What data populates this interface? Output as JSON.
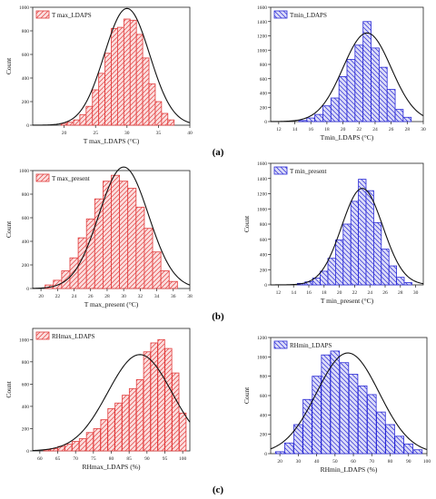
{
  "panel_labels": [
    "(a)",
    "(b)",
    "(c)"
  ],
  "ylabel": "Count",
  "colors": {
    "red": "#e23c3c",
    "red_fill": "#fbdede",
    "blue": "#2a2ad6",
    "blue_fill": "#dcdcf8",
    "curve": "#111111"
  },
  "chart_data": [
    {
      "type": "bar",
      "title": "",
      "legend": "T max_LDAPS",
      "legend_position": "top-left",
      "xlabel": "T max_LDAPS (°C)",
      "ylabel": "Count",
      "color": "red",
      "xlim": [
        15,
        40
      ],
      "ylim": [
        0,
        1000
      ],
      "xticks": [
        20,
        25,
        30,
        35,
        40
      ],
      "yticks": [
        0,
        200,
        400,
        600,
        800,
        1000
      ],
      "bin_width": 1,
      "x": [
        20,
        21,
        22,
        23,
        24,
        25,
        26,
        27,
        28,
        29,
        30,
        31,
        32,
        33,
        34,
        35,
        36,
        37
      ],
      "values": [
        15,
        25,
        45,
        90,
        160,
        300,
        440,
        610,
        820,
        830,
        900,
        890,
        770,
        570,
        350,
        200,
        100,
        45
      ],
      "fit": {
        "mean": 30,
        "sd": 3.6,
        "peak": 990
      }
    },
    {
      "type": "bar",
      "title": "",
      "legend": "Tmin_LDAPS",
      "legend_position": "top-left",
      "xlabel": "Tmin_LDAPS (°C)",
      "ylabel": "",
      "color": "blue",
      "xlim": [
        11,
        30
      ],
      "ylim": [
        0,
        1600
      ],
      "xticks": [
        12,
        14,
        16,
        18,
        20,
        22,
        24,
        26,
        28,
        30
      ],
      "yticks": [
        0,
        200,
        400,
        600,
        800,
        1000,
        1200,
        1400,
        1600
      ],
      "bin_width": 1,
      "x": [
        15,
        16,
        17,
        18,
        19,
        20,
        21,
        22,
        23,
        24,
        25,
        26,
        27,
        28
      ],
      "values": [
        15,
        50,
        100,
        220,
        330,
        630,
        870,
        1070,
        1400,
        1030,
        760,
        450,
        170,
        60
      ],
      "fit": {
        "mean": 23,
        "sd": 3.0,
        "peak": 1240
      }
    },
    {
      "type": "bar",
      "title": "",
      "legend": "T max_present",
      "legend_position": "top-left",
      "xlabel": "T max_present (°C)",
      "ylabel": "Count",
      "color": "red",
      "xlim": [
        19,
        38
      ],
      "ylim": [
        0,
        1000
      ],
      "xticks": [
        20,
        22,
        24,
        26,
        28,
        30,
        32,
        34,
        36,
        38
      ],
      "yticks": [
        0,
        200,
        400,
        600,
        800,
        1000
      ],
      "bin_width": 1,
      "x": [
        21,
        22,
        23,
        24,
        25,
        26,
        27,
        28,
        29,
        30,
        31,
        32,
        33,
        34,
        35,
        36
      ],
      "values": [
        30,
        70,
        150,
        260,
        430,
        590,
        760,
        910,
        960,
        910,
        850,
        690,
        510,
        310,
        150,
        60
      ],
      "fit": {
        "mean": 30,
        "sd": 3.0,
        "peak": 1030
      }
    },
    {
      "type": "bar",
      "title": "",
      "legend": "T min_present",
      "legend_position": "top-left",
      "xlabel": "T min_present (°C)",
      "ylabel": "Count",
      "color": "blue",
      "xlim": [
        11,
        31
      ],
      "ylim": [
        0,
        1600
      ],
      "xticks": [
        12,
        14,
        16,
        18,
        20,
        22,
        24,
        26,
        28,
        30
      ],
      "yticks": [
        0,
        200,
        400,
        600,
        800,
        1000,
        1200,
        1400,
        1600
      ],
      "bin_width": 1,
      "x": [
        15,
        16,
        17,
        18,
        19,
        20,
        21,
        22,
        23,
        24,
        25,
        26,
        27,
        28,
        29
      ],
      "values": [
        20,
        40,
        90,
        180,
        350,
        590,
        800,
        1100,
        1390,
        1240,
        820,
        470,
        250,
        100,
        30
      ],
      "fit": {
        "mean": 23,
        "sd": 2.7,
        "peak": 1270
      }
    },
    {
      "type": "bar",
      "title": "",
      "legend": "RHmax_LDAPS",
      "legend_position": "top-left",
      "xlabel": "RHmax_LDAPS (%)",
      "ylabel": "Count",
      "color": "red",
      "xlim": [
        58,
        102
      ],
      "ylim": [
        0,
        1100
      ],
      "xticks": [
        60,
        65,
        70,
        75,
        80,
        85,
        90,
        95,
        100
      ],
      "yticks": [
        0,
        200,
        400,
        600,
        800,
        1000
      ],
      "bin_width": 1.9,
      "x": [
        62,
        64,
        66,
        68,
        70,
        72,
        74,
        76,
        78,
        80,
        82,
        84,
        86,
        88,
        90,
        92,
        94,
        96,
        98,
        100
      ],
      "values": [
        10,
        20,
        40,
        60,
        85,
        110,
        165,
        200,
        280,
        380,
        430,
        500,
        560,
        640,
        890,
        970,
        1000,
        920,
        700,
        340
      ],
      "fit": {
        "mean": 88,
        "sd": 9.0,
        "peak": 865
      }
    },
    {
      "type": "bar",
      "title": "",
      "legend": "RHmin_LDAPS",
      "legend_position": "top-left",
      "xlabel": "RHmin_LDAPS (%)",
      "ylabel": "Count",
      "color": "blue",
      "xlim": [
        15,
        100
      ],
      "ylim": [
        0,
        1200
      ],
      "xticks": [
        20,
        30,
        40,
        50,
        60,
        70,
        80,
        90,
        100
      ],
      "yticks": [
        0,
        200,
        400,
        600,
        800,
        1000,
        1200
      ],
      "bin_width": 4.8,
      "x": [
        20,
        25,
        30,
        35,
        40,
        45,
        50,
        55,
        60,
        65,
        70,
        75,
        80,
        85,
        90,
        95
      ],
      "values": [
        20,
        110,
        300,
        560,
        800,
        1020,
        1060,
        940,
        820,
        700,
        610,
        430,
        300,
        180,
        100,
        40
      ],
      "fit": {
        "mean": 57,
        "sd": 17,
        "peak": 1040
      }
    }
  ]
}
